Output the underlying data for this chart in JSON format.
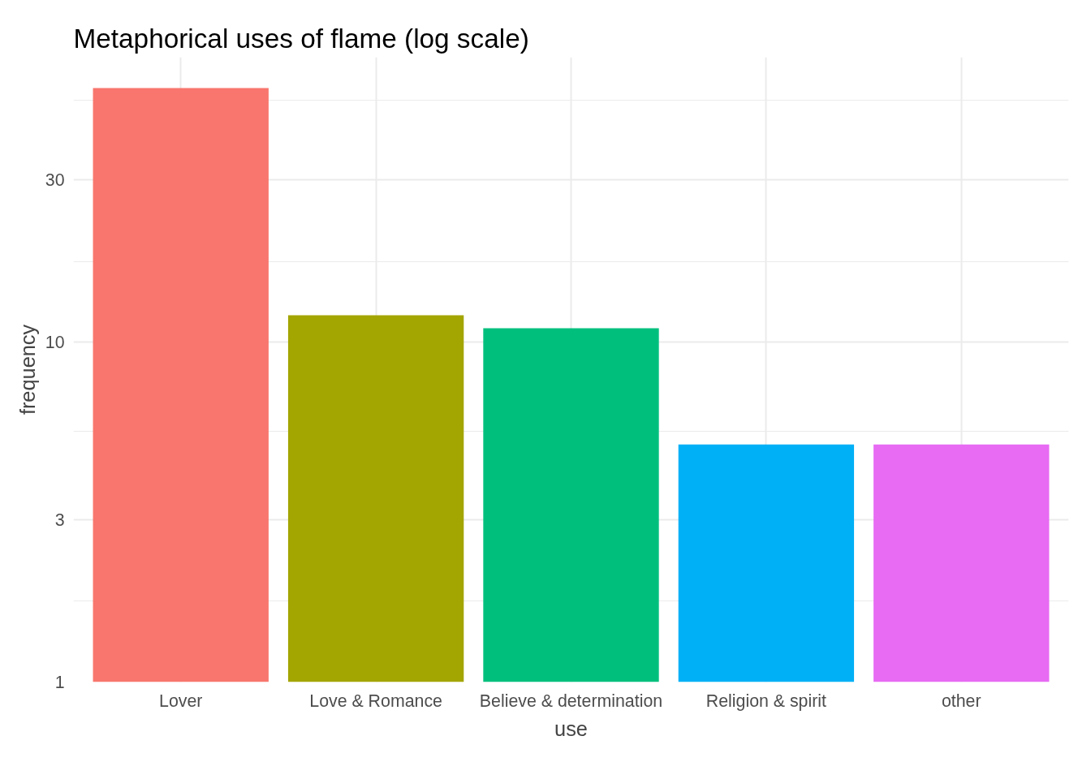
{
  "chart_data": {
    "type": "bar",
    "title": "Metaphorical uses of flame (log scale)",
    "xlabel": "use",
    "ylabel": "frequency",
    "categories": [
      "Lover",
      "Love & Romance",
      "Believe & determination",
      "Religion & spirit",
      "other"
    ],
    "values": [
      56,
      12,
      11,
      5,
      5
    ],
    "colors": [
      "#f8766d",
      "#a3a500",
      "#00bf7d",
      "#00b0f6",
      "#e76bf3"
    ],
    "log": true,
    "ylim": [
      1,
      69
    ],
    "yticks": [
      1,
      {
        "value": 1.73,
        "label": null
      },
      3,
      {
        "value": 5.48,
        "label": null
      },
      10,
      {
        "value": 17.3,
        "label": null
      },
      30,
      {
        "value": 51.5,
        "label": null
      }
    ],
    "grid": true
  }
}
